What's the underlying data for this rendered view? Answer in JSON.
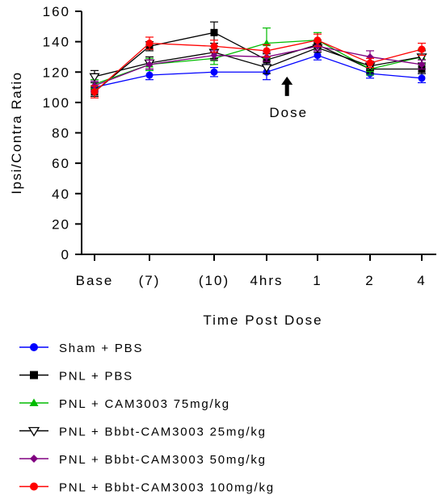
{
  "chart_data": {
    "type": "line",
    "ylabel": "Ipsi/Contra Ratio",
    "xlabel": "Time Post Dose",
    "categories": [
      "Base",
      "(7)",
      "(10)",
      "4hrs",
      "1",
      "2",
      "4"
    ],
    "ylim": [
      0,
      160
    ],
    "yticks": [
      "0",
      "20",
      "40",
      "60",
      "80",
      "100",
      "120",
      "140",
      "160"
    ],
    "annotation": {
      "text": "Dose",
      "category_position": 3.4,
      "arrow_y": 117
    },
    "legend_position": "bottom",
    "series": [
      {
        "name": "Sham + PBS",
        "color": "#0000ff",
        "marker": "circle",
        "values": [
          110,
          118,
          120,
          120,
          131,
          119,
          116
        ],
        "errors": [
          3,
          3,
          3,
          5,
          3,
          3,
          3
        ]
      },
      {
        "name": "PNL + PBS",
        "color": "#000000",
        "marker": "square",
        "values": [
          107,
          137,
          146,
          128,
          138,
          122,
          122
        ],
        "errors": [
          3,
          3,
          7,
          4,
          3,
          3,
          3
        ]
      },
      {
        "name": "PNL + CAM3003 75mg/kg",
        "color": "#00bb00",
        "marker": "triangle-up",
        "values": [
          112,
          125,
          129,
          139,
          141,
          122,
          130
        ],
        "errors": [
          3,
          4,
          4,
          10,
          5,
          4,
          5
        ]
      },
      {
        "name": "PNL + Bbbt-CAM3003 25mg/kg",
        "color": "#000000",
        "marker": "triangle-down-open",
        "values": [
          117,
          126,
          133,
          123,
          136,
          124,
          130
        ],
        "errors": [
          4,
          4,
          4,
          4,
          3,
          3,
          4
        ]
      },
      {
        "name": "PNL + Bbbt-CAM3003 50mg/kg",
        "color": "#800080",
        "marker": "diamond",
        "values": [
          111,
          125,
          131,
          130,
          137,
          130,
          125
        ],
        "errors": [
          3,
          3,
          3,
          3,
          3,
          4,
          3
        ]
      },
      {
        "name": "PNL + Bbbt-CAM3003 100mg/kg",
        "color": "#ff0000",
        "marker": "circle",
        "values": [
          107,
          139,
          137,
          134,
          141,
          126,
          135
        ],
        "errors": [
          4,
          4,
          4,
          4,
          4,
          3,
          4
        ]
      }
    ]
  }
}
